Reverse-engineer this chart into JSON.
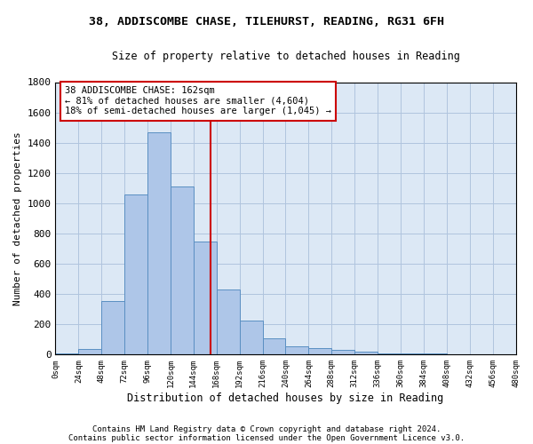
{
  "title1": "38, ADDISCOMBE CHASE, TILEHURST, READING, RG31 6FH",
  "title2": "Size of property relative to detached houses in Reading",
  "xlabel": "Distribution of detached houses by size in Reading",
  "ylabel": "Number of detached properties",
  "bin_edges": [
    0,
    24,
    48,
    72,
    96,
    120,
    144,
    168,
    192,
    216,
    240,
    264,
    288,
    312,
    336,
    360,
    384,
    408,
    432,
    456,
    480
  ],
  "bar_heights": [
    10,
    35,
    355,
    1060,
    1470,
    1110,
    745,
    430,
    225,
    110,
    55,
    45,
    30,
    20,
    10,
    5,
    5,
    2,
    2,
    1
  ],
  "bar_color": "#aec6e8",
  "bar_edge_color": "#5a8fc2",
  "property_size": 162,
  "vline_color": "#cc0000",
  "annotation_line1": "38 ADDISCOMBE CHASE: 162sqm",
  "annotation_line2": "← 81% of detached houses are smaller (4,604)",
  "annotation_line3": "18% of semi-detached houses are larger (1,045) →",
  "annotation_box_edgecolor": "#cc0000",
  "background_color": "#ffffff",
  "plot_bg_color": "#dce8f5",
  "grid_color": "#b0c4de",
  "footer1": "Contains HM Land Registry data © Crown copyright and database right 2024.",
  "footer2": "Contains public sector information licensed under the Open Government Licence v3.0.",
  "ylim": [
    0,
    1800
  ],
  "xlim": [
    0,
    480
  ],
  "yticks": [
    0,
    200,
    400,
    600,
    800,
    1000,
    1200,
    1400,
    1600,
    1800
  ],
  "xtick_values": [
    0,
    24,
    48,
    72,
    96,
    120,
    144,
    168,
    192,
    216,
    240,
    264,
    288,
    312,
    336,
    360,
    384,
    408,
    432,
    456,
    480
  ],
  "xtick_labels": [
    "0sqm",
    "24sqm",
    "48sqm",
    "72sqm",
    "96sqm",
    "120sqm",
    "144sqm",
    "168sqm",
    "192sqm",
    "216sqm",
    "240sqm",
    "264sqm",
    "288sqm",
    "312sqm",
    "336sqm",
    "360sqm",
    "384sqm",
    "408sqm",
    "432sqm",
    "456sqm",
    "480sqm"
  ]
}
